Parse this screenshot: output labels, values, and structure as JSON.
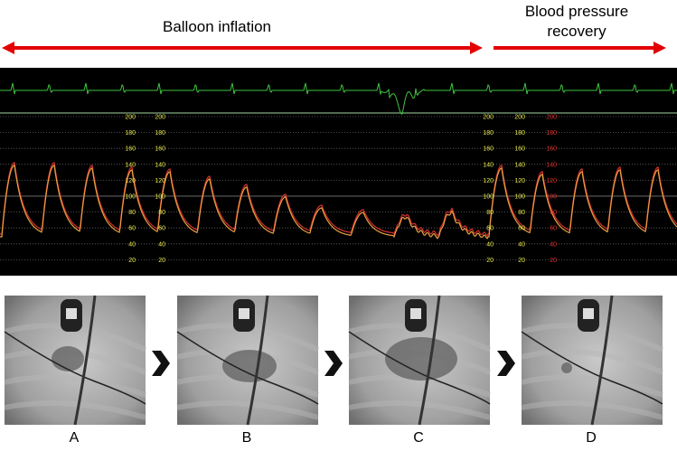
{
  "header": {
    "left_label": "Balloon inflation",
    "right_label": "Blood pressure recovery"
  },
  "monitor": {
    "scale_ticks": [
      "200",
      "180",
      "160",
      "140",
      "120",
      "100",
      "80",
      "60",
      "40",
      "20"
    ]
  },
  "panels": [
    {
      "label": "A"
    },
    {
      "label": "B"
    },
    {
      "label": "C"
    },
    {
      "label": "D"
    }
  ]
}
